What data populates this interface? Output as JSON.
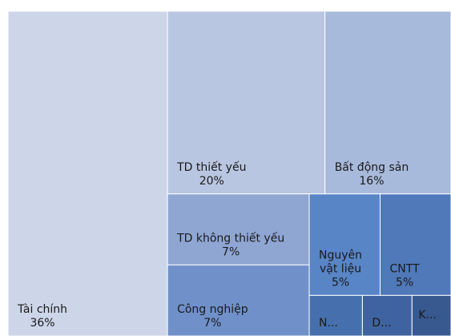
{
  "chart_data": {
    "type": "treemap",
    "categories": [
      "Tài chính",
      "TD thiết yếu",
      "Bất động sản",
      "TD không thiết yếu",
      "Công nghiệp",
      "Nguyên vật liệu",
      "CNTT",
      "N...",
      "D...",
      "K..."
    ],
    "values": [
      36,
      20,
      16,
      7,
      7,
      5,
      5,
      1.5,
      1.4,
      1.1
    ],
    "value_labels": [
      "36%",
      "20%",
      "16%",
      "7%",
      "7%",
      "5%",
      "5%",
      null,
      null,
      null
    ],
    "colors": [
      "#cdd6e8",
      "#b9c6e1",
      "#a8badb",
      "#8fa6d3",
      "#7090c9",
      "#5885c6",
      "#4f79b9",
      "#4670ad",
      "#3f63a0",
      "#385990"
    ]
  }
}
